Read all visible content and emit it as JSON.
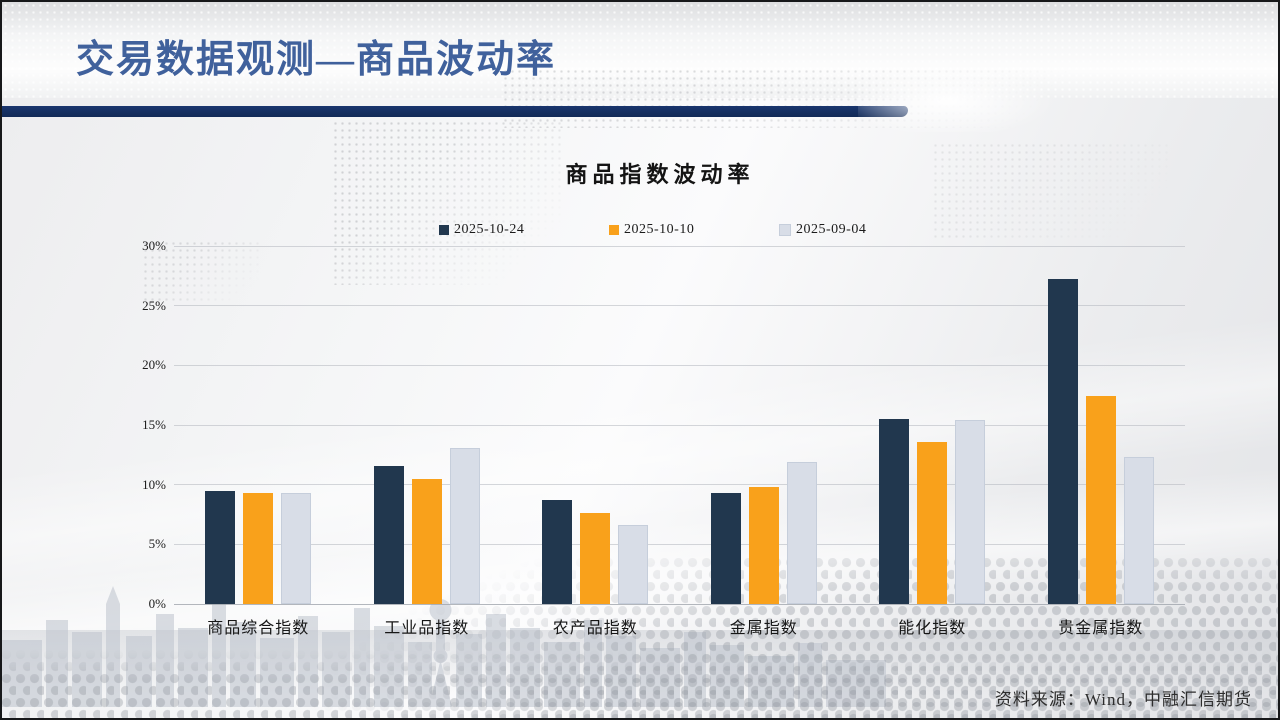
{
  "header": {
    "title": "交易数据观测—商品波动率",
    "accent_color": "#40619C",
    "divider_color": "#1A366E"
  },
  "chart_data": {
    "type": "bar",
    "title": "商品指数波动率",
    "categories": [
      "商品综合指数",
      "工业品指数",
      "农产品指数",
      "金属指数",
      "能化指数",
      "贵金属指数"
    ],
    "series": [
      {
        "name": "2025-10-24",
        "color": "#21374E",
        "values": [
          9.5,
          11.6,
          8.7,
          9.3,
          15.5,
          27.2
        ]
      },
      {
        "name": "2025-10-10",
        "color": "#F9A11B",
        "values": [
          9.3,
          10.5,
          7.6,
          9.8,
          13.6,
          17.4
        ]
      },
      {
        "name": "2025-09-04",
        "color": "#D8DDE7",
        "border_color": "#C6CEDB",
        "values": [
          9.3,
          13.1,
          6.6,
          11.9,
          15.4,
          12.3
        ]
      }
    ],
    "ylim": [
      0,
      30
    ],
    "y_ticks": [
      "0%",
      "5%",
      "10%",
      "15%",
      "20%",
      "25%",
      "30%"
    ],
    "unit": "%",
    "grid": true,
    "legend_position": "top",
    "xlabel": "",
    "ylabel": ""
  },
  "footer": {
    "source": "资料来源：Wind，中融汇信期货"
  }
}
